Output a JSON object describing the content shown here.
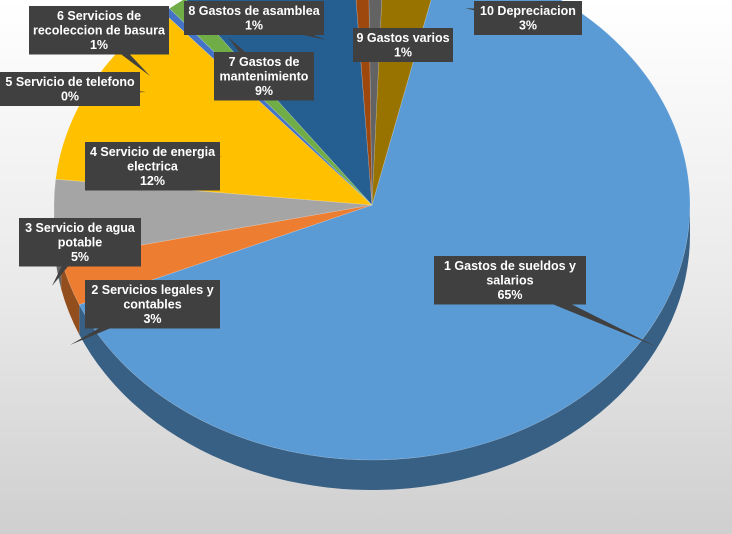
{
  "chart_data": {
    "type": "pie",
    "three_d": true,
    "legend": "none",
    "data_labels": "callouts with category and percent",
    "slices": [
      {
        "lines": [
          "1 Gastos de sueldos y",
          "salarios"
        ],
        "percent_label": "65%",
        "value": 65,
        "color": "#5b9bd5"
      },
      {
        "lines": [
          "2 Servicios legales y",
          "contables"
        ],
        "percent_label": "3%",
        "value": 3,
        "color": "#ed7d31"
      },
      {
        "lines": [
          "3 Servicio de agua",
          "potable"
        ],
        "percent_label": "5%",
        "value": 5,
        "color": "#a5a5a5"
      },
      {
        "lines": [
          "4 Servicio de energia",
          "electrica"
        ],
        "percent_label": "12%",
        "value": 12,
        "color": "#ffc000"
      },
      {
        "lines": [
          "5 Servicio de telefono"
        ],
        "percent_label": "0%",
        "value": 0.4,
        "color": "#4472c4"
      },
      {
        "lines": [
          "6 Servicios de",
          "recoleccion de basura"
        ],
        "percent_label": "1%",
        "value": 1,
        "color": "#70ad47"
      },
      {
        "lines": [
          "7 Gastos de",
          "mantenimiento"
        ],
        "percent_label": "9%",
        "value": 9,
        "color": "#255e91"
      },
      {
        "lines": [
          "8 Gastos de asamblea"
        ],
        "percent_label": "1%",
        "value": 0.8,
        "color": "#9e480e"
      },
      {
        "lines": [
          "9 Gastos varios"
        ],
        "percent_label": "1%",
        "value": 0.8,
        "color": "#636363"
      },
      {
        "lines": [
          "10 Depreciacion"
        ],
        "percent_label": "3%",
        "value": 3,
        "color": "#997300"
      }
    ]
  }
}
